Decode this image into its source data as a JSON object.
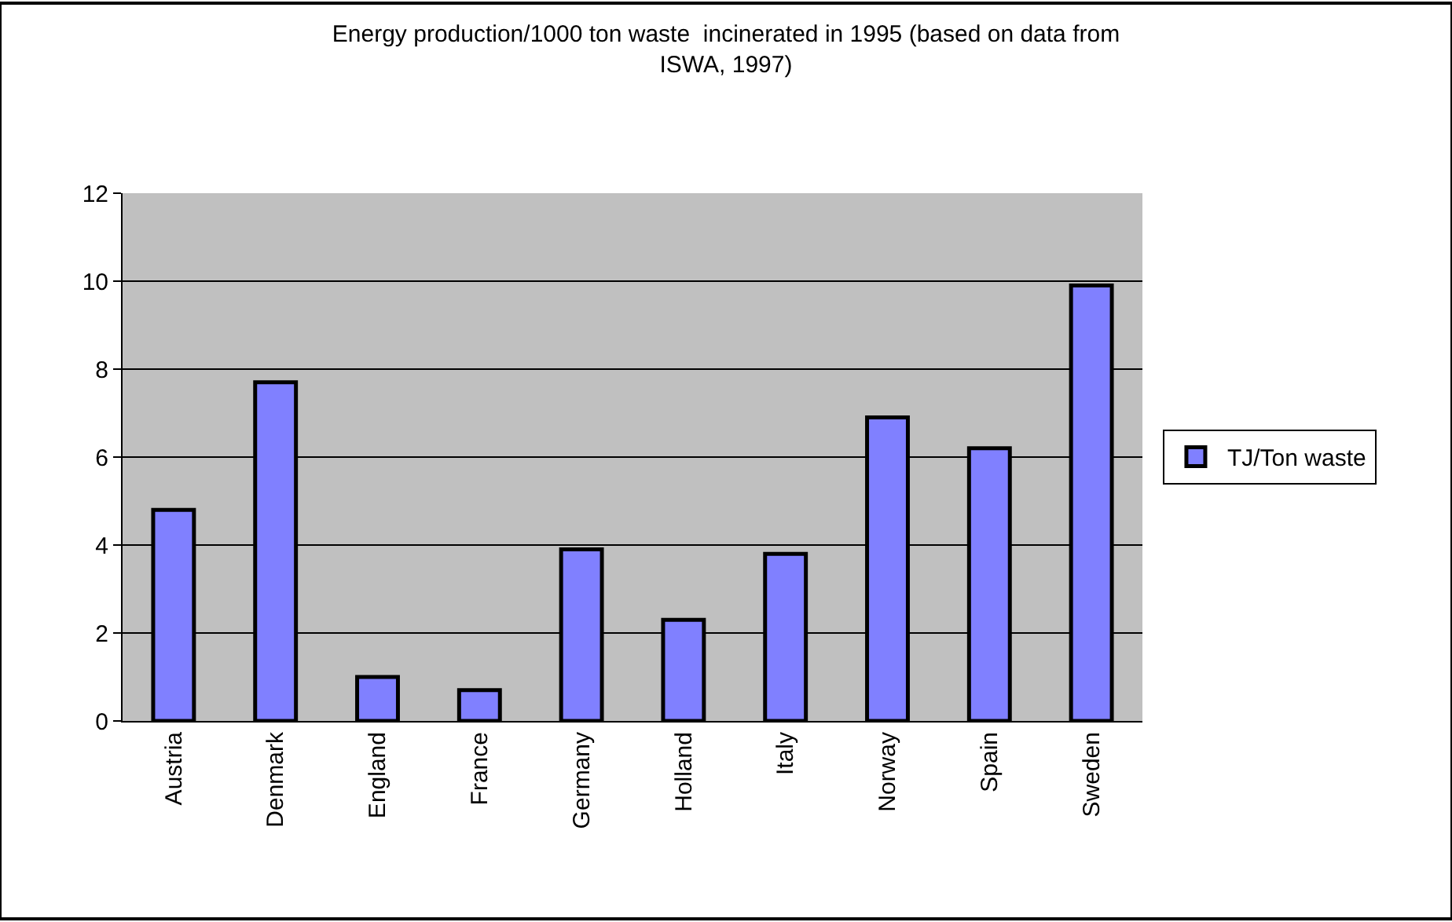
{
  "chart_data": {
    "type": "bar",
    "title": "Energy production/1000 ton waste  incinerated in 1995 (based on data from\nISWA, 1997)",
    "categories": [
      "Austria",
      "Denmark",
      "England",
      "France",
      "Germany",
      "Holland",
      "Italy",
      "Norway",
      "Spain",
      "Sweden"
    ],
    "series": [
      {
        "name": "TJ/Ton waste",
        "color": "#8080ff",
        "values": [
          4.8,
          7.7,
          1.0,
          0.7,
          3.9,
          2.3,
          3.8,
          6.9,
          6.2,
          9.9
        ]
      }
    ],
    "ylim": [
      0,
      12
    ],
    "yticks": [
      0,
      2,
      4,
      6,
      8,
      10,
      12
    ],
    "grid": "y",
    "legend": "right"
  }
}
